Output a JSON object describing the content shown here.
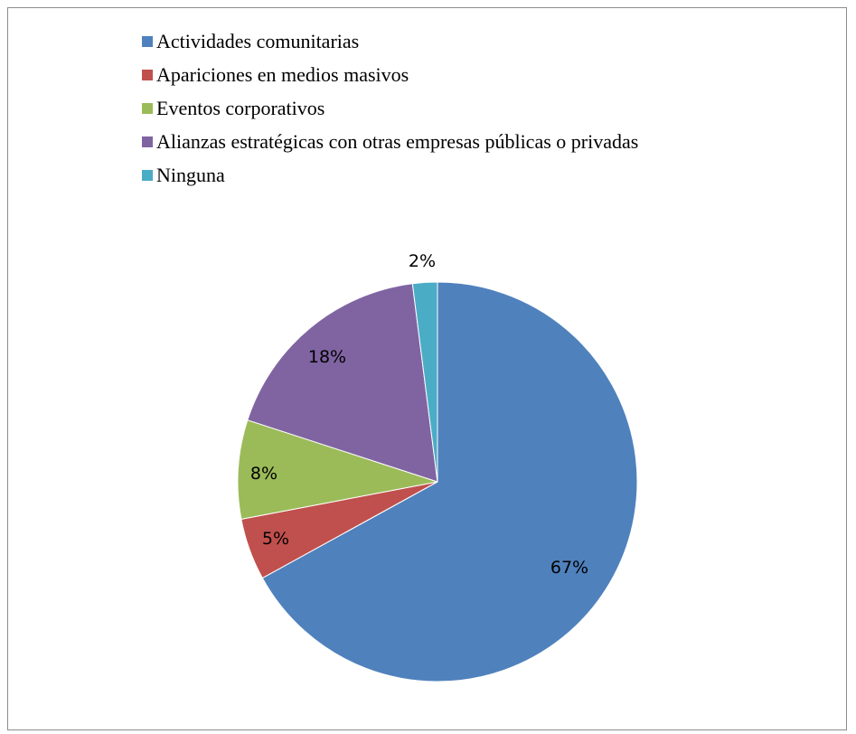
{
  "chart_data": {
    "type": "pie",
    "title": "",
    "categories": [
      "Actividades comunitarias",
      "Apariciones en medios masivos",
      "Eventos corporativos",
      "Alianzas estratégicas con otras empresas públicas o privadas",
      "Ninguna"
    ],
    "values": [
      67,
      5,
      8,
      18,
      2
    ],
    "data_labels": [
      "67%",
      "5%",
      "8%",
      "18%",
      "2%"
    ],
    "colors": [
      "#4f81bd",
      "#c0504d",
      "#9bbb59",
      "#8064a2",
      "#4bacc6"
    ],
    "legend_position": "top",
    "start_angle": "12 o'clock",
    "direction": "clockwise"
  }
}
